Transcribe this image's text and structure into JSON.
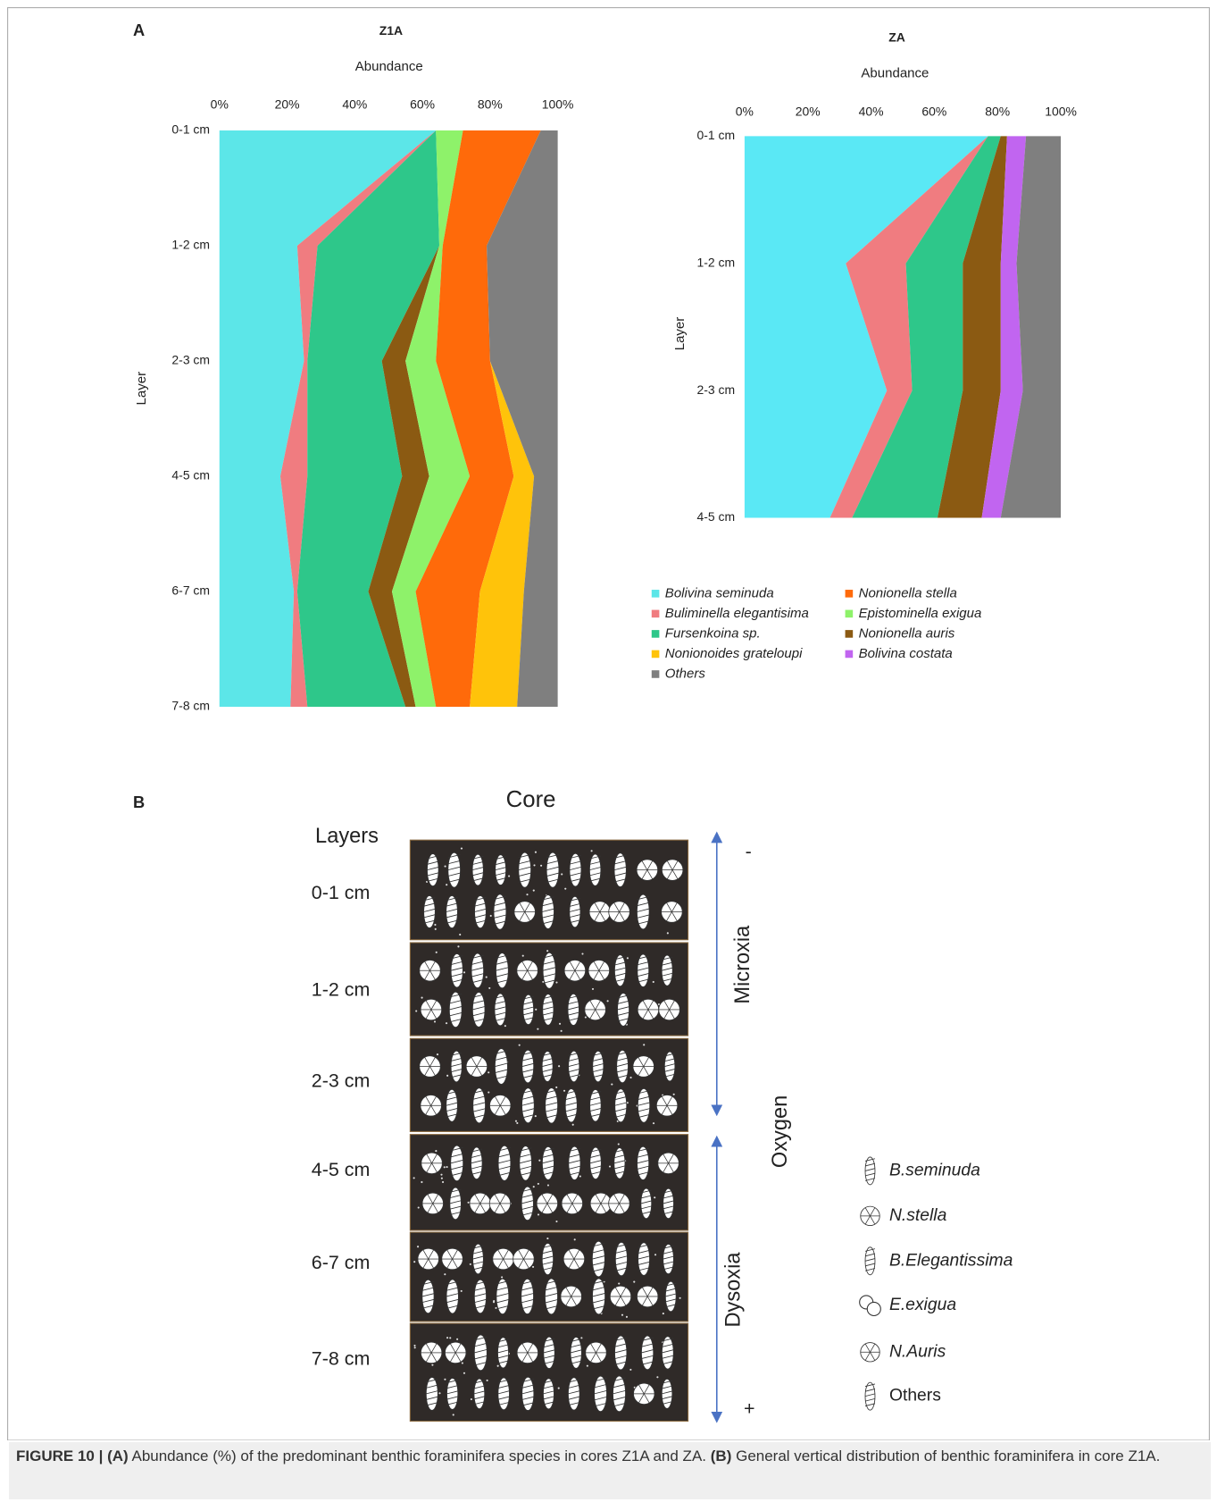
{
  "panel_a": {
    "label": "A"
  },
  "chart_data": [
    {
      "type": "area",
      "stacked": true,
      "orientation": "horizontal",
      "title": "Z1A",
      "subtitle": "Abundance",
      "y_label": "Layer",
      "categories": [
        "0-1 cm",
        "1-2 cm",
        "2-3 cm",
        "4-5 cm",
        "6-7 cm",
        "7-8 cm"
      ],
      "xlim": [
        0,
        100
      ],
      "xticks": [
        {
          "value": 0,
          "label": "0%"
        },
        {
          "value": 20,
          "label": "20%"
        },
        {
          "value": 40,
          "label": "40%"
        },
        {
          "value": 60,
          "label": "60%"
        },
        {
          "value": 80,
          "label": "80%"
        },
        {
          "value": 100,
          "label": "100%"
        }
      ],
      "series": [
        {
          "name": "Bolivina seminuda",
          "color": "#5ce6e8",
          "values": [
            64,
            23,
            25,
            18,
            22,
            21
          ]
        },
        {
          "name": "Buliminella elegantisima",
          "color": "#f07c80",
          "values": [
            0,
            6,
            1,
            8,
            1,
            5
          ]
        },
        {
          "name": "Fursenkoina sp.",
          "color": "#2ec78a",
          "values": [
            0,
            36,
            22,
            28,
            21,
            29
          ]
        },
        {
          "name": "Nonionella auris",
          "color": "#8b5a12",
          "values": [
            0,
            0,
            7,
            8,
            7,
            3
          ]
        },
        {
          "name": "Epistominella exigua",
          "color": "#8ef26a",
          "values": [
            8,
            1,
            9,
            12,
            7,
            6
          ]
        },
        {
          "name": "Nonionella stella",
          "color": "#ff6a0a",
          "values": [
            23,
            13,
            16,
            13,
            19,
            10
          ]
        },
        {
          "name": "Nonionoides grateloupi",
          "color": "#ffc30a",
          "values": [
            0,
            0,
            0,
            6,
            13,
            14
          ]
        },
        {
          "name": "Others",
          "color": "#7f7f7f",
          "values": [
            5,
            21,
            20,
            7,
            10,
            12
          ]
        }
      ]
    },
    {
      "type": "area",
      "stacked": true,
      "orientation": "horizontal",
      "title": "ZA",
      "subtitle": "Abundance",
      "y_label": "Layer",
      "categories": [
        "0-1 cm",
        "1-2 cm",
        "2-3 cm",
        "4-5 cm"
      ],
      "xlim": [
        0,
        100
      ],
      "xticks": [
        {
          "value": 0,
          "label": "0%"
        },
        {
          "value": 20,
          "label": "20%"
        },
        {
          "value": 40,
          "label": "40%"
        },
        {
          "value": 60,
          "label": "60%"
        },
        {
          "value": 80,
          "label": "80%"
        },
        {
          "value": 100,
          "label": "100%"
        }
      ],
      "series": [
        {
          "name": "Bolivina seminuda",
          "color": "#5ae8f5",
          "values": [
            77,
            32,
            45,
            27
          ]
        },
        {
          "name": "Buliminella elegantisima",
          "color": "#f07c80",
          "values": [
            0,
            19,
            8,
            7
          ]
        },
        {
          "name": "Fursenkoina sp.",
          "color": "#2ec78a",
          "values": [
            4,
            18,
            16,
            27
          ]
        },
        {
          "name": "Nonionella auris",
          "color": "#8b5a12",
          "values": [
            2,
            12,
            12,
            14
          ]
        },
        {
          "name": "Bolivina costata",
          "color": "#c165f0",
          "values": [
            6,
            5,
            7,
            6
          ]
        },
        {
          "name": "Others",
          "color": "#7f7f7f",
          "values": [
            11,
            14,
            12,
            19
          ]
        }
      ]
    }
  ],
  "legend": [
    {
      "name": "Bolivina seminuda",
      "color": "#5ce6e8"
    },
    {
      "name": "Nonionella stella",
      "color": "#ff6a0a"
    },
    {
      "name": "Buliminella elegantisima",
      "color": "#f07c80"
    },
    {
      "name": "Epistominella exigua",
      "color": "#8ef26a"
    },
    {
      "name": "Fursenkoina sp.",
      "color": "#2ec78a"
    },
    {
      "name": "Nonionella auris",
      "color": "#8b5a12"
    },
    {
      "name": "Nonionoides grateloupi",
      "color": "#ffc30a"
    },
    {
      "name": "Bolivina costata",
      "color": "#c165f0"
    },
    {
      "name": "Others",
      "color": "#7f7f7f"
    }
  ],
  "panel_b": {
    "label": "B",
    "title": "Core",
    "layers_heading": "Layers",
    "layers": [
      "0-1 cm",
      "1-2 cm",
      "2-3 cm",
      "4-5 cm",
      "6-7 cm",
      "7-8 cm"
    ],
    "zones": {
      "top_sign": "-",
      "bottom_sign": "+",
      "upper": "Microxia",
      "lower": "Dysoxia",
      "axis": "Oxygen"
    },
    "legend": [
      "B.seminuda",
      "N.stella",
      "B.Elegantissima",
      "E.exigua",
      "N.Auris",
      "Others"
    ]
  },
  "caption": {
    "figure": "FIGURE 10 |",
    "a_label": "(A)",
    "a_text": "Abundance (%) of the predominant benthic foraminifera species in cores Z1A and ZA.",
    "b_label": "(B)",
    "b_text": "General vertical distribution of benthic foraminifera in core Z1A."
  }
}
